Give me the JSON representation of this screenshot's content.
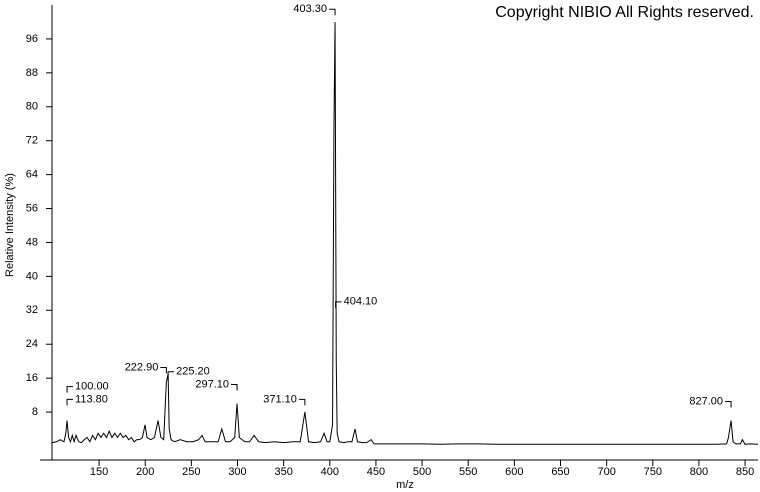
{
  "chart_data": {
    "type": "line",
    "title": "Copyright NIBIO All Rights reserved.",
    "x_label": "m/z",
    "y_label": "Relative Intensity (%)",
    "color": "#000000",
    "xlim": [
      99,
      864
    ],
    "ylim": [
      0,
      104
    ],
    "xticks": [
      150,
      200,
      250,
      300,
      350,
      400,
      450,
      500,
      550,
      600,
      650,
      700,
      750,
      800,
      850
    ],
    "yticks": [
      8,
      16,
      24,
      32,
      40,
      48,
      56,
      64,
      72,
      80,
      88,
      96
    ],
    "x": [
      99,
      104,
      108,
      112,
      114,
      115.3,
      117,
      119,
      121,
      123,
      125,
      128,
      131,
      134,
      137,
      140,
      143,
      146,
      149,
      152,
      155,
      158,
      161,
      164,
      167,
      170,
      173,
      176,
      179,
      182,
      185,
      188,
      191,
      194,
      197,
      199.8,
      202,
      206,
      210,
      213.9,
      217,
      220,
      222.9,
      224.8,
      226,
      228,
      232,
      238,
      245,
      252,
      258,
      261.6,
      265,
      272,
      279,
      283,
      287,
      292,
      297,
      299.5,
      302,
      308,
      313,
      318,
      323,
      330,
      340,
      350,
      360,
      368,
      373,
      377,
      383,
      390,
      393.8,
      397,
      400,
      403,
      404.5,
      405.7,
      406.3,
      407,
      408,
      410,
      415,
      420,
      424,
      427.4,
      430,
      435,
      440,
      444.7,
      448,
      460,
      480,
      500,
      520,
      540,
      560,
      580,
      600,
      620,
      640,
      660,
      680,
      700,
      720,
      740,
      760,
      780,
      800,
      820,
      830,
      832,
      834.8,
      837,
      840,
      845,
      847,
      850,
      855,
      864
    ],
    "values": [
      0.8,
      1,
      1.5,
      1,
      3,
      6,
      2,
      1,
      2.5,
      1,
      2.5,
      1,
      0.8,
      1.5,
      2,
      1,
      2.5,
      1.5,
      3,
      2,
      3,
      2,
      3.5,
      2,
      3,
      2,
      3,
      2,
      2.5,
      1.5,
      2,
      1,
      1.5,
      1.5,
      2,
      5,
      2,
      1.5,
      2,
      6,
      2,
      1.5,
      15,
      17,
      4,
      1.5,
      1,
      1.5,
      1,
      1,
      1.5,
      2.5,
      1,
      1,
      1,
      4,
      1,
      1,
      2,
      10,
      2,
      1,
      1,
      2.5,
      1,
      0.8,
      1,
      0.8,
      1,
      1,
      8,
      1,
      0.8,
      1,
      3,
      1,
      1,
      5,
      75,
      100,
      65,
      20,
      3,
      1,
      0.8,
      1,
      1,
      4,
      1,
      0.8,
      0.8,
      1.5,
      0.5,
      0.5,
      0.5,
      0.5,
      0.4,
      0.5,
      0.5,
      0.4,
      0.4,
      0.4,
      0.4,
      0.4,
      0.4,
      0.4,
      0.4,
      0.4,
      0.4,
      0.4,
      0.4,
      0.4,
      0.5,
      2,
      6,
      1,
      0.5,
      0.5,
      1.5,
      0.4,
      0.5,
      0.4
    ],
    "annotations": [
      {
        "text": "403.30",
        "x": 405.7,
        "y": 103
      },
      {
        "text": "404.10",
        "x": 406.3,
        "y": 34
      },
      {
        "text": "222.90",
        "x": 222.9,
        "y": 18.5
      },
      {
        "text": "225.20",
        "x": 224.8,
        "y": 17.5
      },
      {
        "text": "297.10",
        "x": 299.5,
        "y": 14.5
      },
      {
        "text": "371.10",
        "x": 373,
        "y": 11
      },
      {
        "text": "100.00",
        "x": 115.3,
        "y": 14
      },
      {
        "text": "113.80",
        "x": 115.3,
        "y": 11
      },
      {
        "text": "827.00",
        "x": 834.8,
        "y": 10.5
      }
    ]
  }
}
